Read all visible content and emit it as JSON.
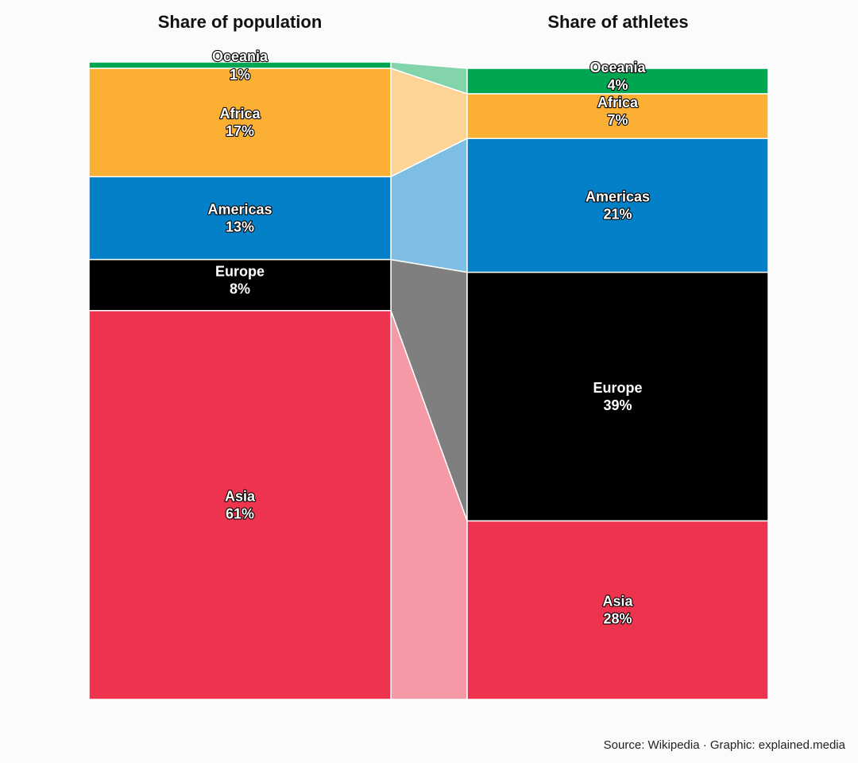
{
  "chart_data": {
    "type": "stacked-bar-flow",
    "columns": [
      {
        "title": "Share of population",
        "segments": [
          {
            "name": "Oceania",
            "value": 1,
            "label": "1%"
          },
          {
            "name": "Africa",
            "value": 17,
            "label": "17%"
          },
          {
            "name": "Americas",
            "value": 13,
            "label": "13%"
          },
          {
            "name": "Europe",
            "value": 8,
            "label": "8%"
          },
          {
            "name": "Asia",
            "value": 61,
            "label": "61%"
          }
        ]
      },
      {
        "title": "Share of athletes",
        "segments": [
          {
            "name": "Oceania",
            "value": 4,
            "label": "4%"
          },
          {
            "name": "Africa",
            "value": 7,
            "label": "7%"
          },
          {
            "name": "Americas",
            "value": 21,
            "label": "21%"
          },
          {
            "name": "Europe",
            "value": 39,
            "label": "39%"
          },
          {
            "name": "Asia",
            "value": 28,
            "label": "28%"
          }
        ]
      }
    ],
    "colors": {
      "Oceania": "#00a651",
      "Africa": "#fbb034",
      "Americas": "#0380c7",
      "Europe": "#000000",
      "Asia": "#ee334e"
    },
    "flow_colors": {
      "Oceania": "#83d3ab",
      "Africa": "#fcd596",
      "Americas": "#7ebee5",
      "Europe": "#7f7f7f",
      "Asia": "#f599a6"
    }
  },
  "footer": {
    "source": "Source: Wikipedia · Graphic: explained.media"
  }
}
